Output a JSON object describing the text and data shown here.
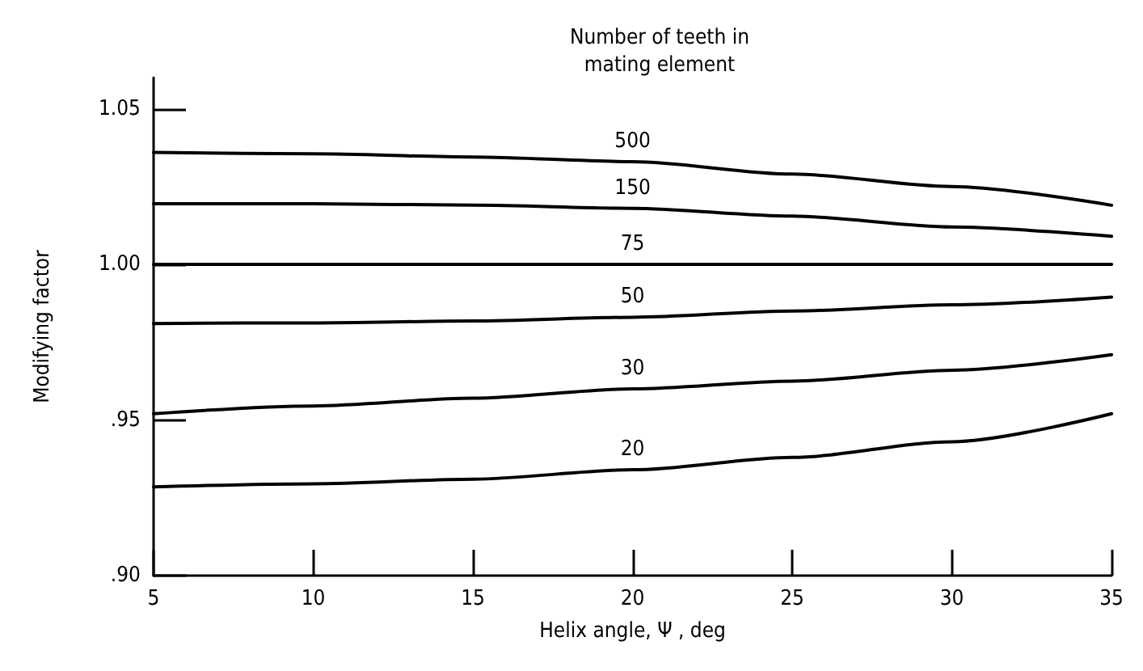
{
  "chart_data": {
    "type": "line",
    "xlabel": "Helix angle, Ψ , deg",
    "ylabel": "Modifying factor",
    "legend_title": "Number of teeth in\nmating element",
    "x": [
      5,
      10,
      15,
      20,
      25,
      30,
      35
    ],
    "series": [
      {
        "name": "500",
        "color": "#000000",
        "values": [
          1.036,
          1.0355,
          1.0345,
          1.033,
          1.029,
          1.025,
          1.019
        ]
      },
      {
        "name": "150",
        "color": "#000000",
        "values": [
          1.0195,
          1.0195,
          1.019,
          1.018,
          1.0155,
          1.012,
          1.009
        ]
      },
      {
        "name": "75",
        "color": "#000000",
        "values": [
          1.0,
          1.0,
          1.0,
          1.0,
          1.0,
          1.0,
          1.0
        ]
      },
      {
        "name": "50",
        "color": "#000000",
        "values": [
          0.981,
          0.9812,
          0.9818,
          0.983,
          0.985,
          0.987,
          0.9895
        ]
      },
      {
        "name": "30",
        "color": "#000000",
        "values": [
          0.952,
          0.9545,
          0.957,
          0.96,
          0.9625,
          0.966,
          0.971
        ]
      },
      {
        "name": "20",
        "color": "#000000",
        "values": [
          0.9285,
          0.9295,
          0.931,
          0.934,
          0.938,
          0.943,
          0.952
        ]
      }
    ],
    "xlim": [
      5,
      35
    ],
    "xticks": [
      5,
      10,
      15,
      20,
      25,
      30,
      35
    ],
    "ylim": [
      0.9,
      1.06
    ],
    "yticks": [
      {
        "value": 0.9,
        "label": ".90"
      },
      {
        "value": 0.95,
        "label": ".95"
      },
      {
        "value": 1.0,
        "label": "1.00"
      },
      {
        "value": 1.05,
        "label": "1.05"
      }
    ],
    "grid": false,
    "legend": false,
    "marker": "none",
    "line_style": "solid"
  }
}
